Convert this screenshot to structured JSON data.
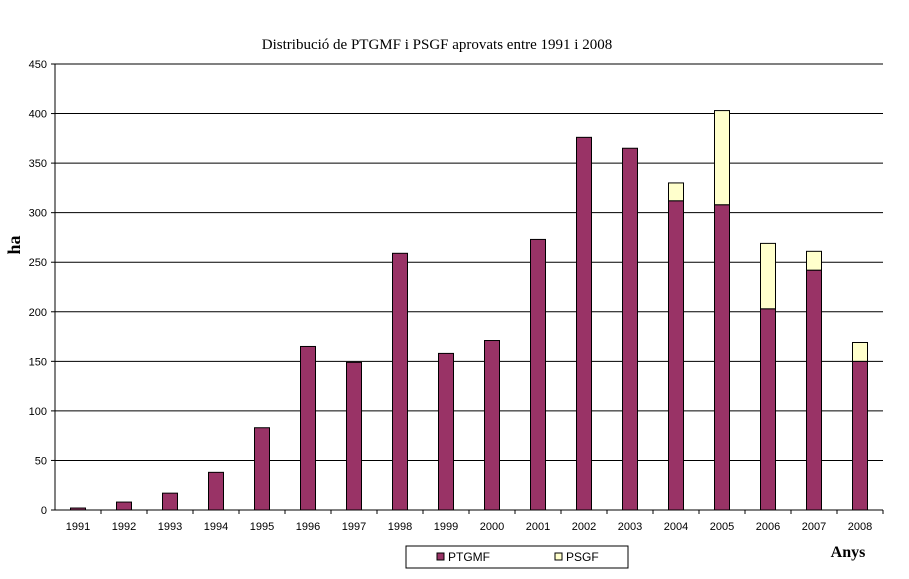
{
  "chart_data": {
    "type": "bar",
    "stacked": true,
    "title": "Distribució de PTGMF i PSGF aprovats entre 1991 i 2008",
    "ylabel": "ha",
    "xlabel": "Anys",
    "ylim": [
      0,
      450
    ],
    "yticks": [
      0,
      50,
      100,
      150,
      200,
      250,
      300,
      350,
      400,
      450
    ],
    "grid": true,
    "legend_position": "bottom",
    "categories": [
      "1991",
      "1992",
      "1993",
      "1994",
      "1995",
      "1996",
      "1997",
      "1998",
      "1999",
      "2000",
      "2001",
      "2002",
      "2003",
      "2004",
      "2005",
      "2006",
      "2007",
      "2008"
    ],
    "series": [
      {
        "name": "PTGMF",
        "color": "#993366",
        "values": [
          2,
          8,
          17,
          38,
          83,
          165,
          149,
          259,
          158,
          171,
          273,
          376,
          365,
          312,
          308,
          203,
          242,
          150
        ]
      },
      {
        "name": "PSGF",
        "color": "#ffffcc",
        "values": [
          0,
          0,
          0,
          0,
          0,
          0,
          0,
          0,
          0,
          0,
          0,
          0,
          0,
          18,
          95,
          66,
          19,
          19
        ]
      }
    ]
  }
}
